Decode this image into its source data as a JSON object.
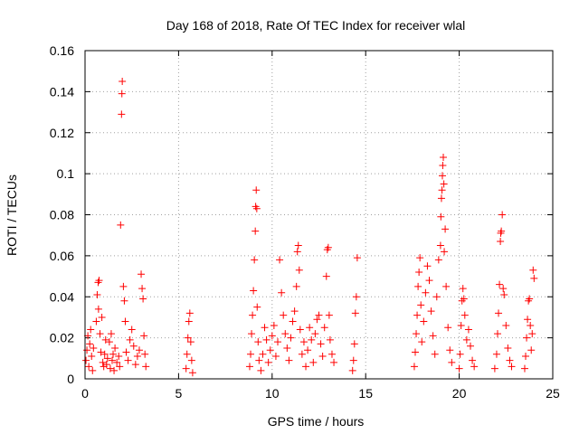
{
  "chart_data": {
    "type": "scatter",
    "title": "Day 168 of 2018, Rate Of TEC Index for receiver wlal",
    "xlabel": "GPS time / hours",
    "ylabel": "ROTI / TECUs",
    "xlim": [
      0,
      25
    ],
    "ylim": [
      0,
      0.16
    ],
    "xticks": [
      0,
      5,
      10,
      15,
      20,
      25
    ],
    "xtick_labels": [
      "0",
      "5",
      "10",
      "15",
      "20",
      "25"
    ],
    "yticks": [
      0,
      0.02,
      0.04,
      0.06,
      0.08,
      0.1,
      0.12,
      0.14,
      0.16
    ],
    "ytick_labels": [
      "0",
      "0.02",
      "0.04",
      "0.06",
      "0.08",
      "0.1",
      "0.12",
      "0.14",
      "0.16"
    ],
    "grid": true,
    "marker": "+",
    "color": "#ff0000",
    "series": [
      {
        "name": "ROTI",
        "points": [
          [
            0.05,
            0.009
          ],
          [
            0.1,
            0.014
          ],
          [
            0.15,
            0.021
          ],
          [
            0.2,
            0.006
          ],
          [
            0.25,
            0.017
          ],
          [
            0.3,
            0.024
          ],
          [
            0.35,
            0.011
          ],
          [
            0.4,
            0.004
          ],
          [
            0.45,
            0.015
          ],
          [
            0.6,
            0.028
          ],
          [
            0.65,
            0.041
          ],
          [
            0.7,
            0.047
          ],
          [
            0.72,
            0.034
          ],
          [
            0.75,
            0.048
          ],
          [
            0.8,
            0.022
          ],
          [
            0.85,
            0.013
          ],
          [
            0.9,
            0.03
          ],
          [
            0.95,
            0.008
          ],
          [
            1.0,
            0.006
          ],
          [
            1.05,
            0.012
          ],
          [
            1.1,
            0.019
          ],
          [
            1.15,
            0.007
          ],
          [
            1.2,
            0.01
          ],
          [
            1.3,
            0.018
          ],
          [
            1.35,
            0.005
          ],
          [
            1.4,
            0.022
          ],
          [
            1.45,
            0.009
          ],
          [
            1.5,
            0.012
          ],
          [
            1.55,
            0.004
          ],
          [
            1.6,
            0.015
          ],
          [
            1.7,
            0.008
          ],
          [
            1.8,
            0.011
          ],
          [
            1.85,
            0.006
          ],
          [
            1.9,
            0.075
          ],
          [
            1.95,
            0.129
          ],
          [
            1.97,
            0.139
          ],
          [
            1.99,
            0.145
          ],
          [
            2.05,
            0.045
          ],
          [
            2.1,
            0.038
          ],
          [
            2.15,
            0.028
          ],
          [
            2.2,
            0.013
          ],
          [
            2.3,
            0.009
          ],
          [
            2.4,
            0.019
          ],
          [
            2.5,
            0.024
          ],
          [
            2.6,
            0.016
          ],
          [
            2.7,
            0.007
          ],
          [
            2.8,
            0.011
          ],
          [
            2.9,
            0.014
          ],
          [
            3.0,
            0.051
          ],
          [
            3.05,
            0.044
          ],
          [
            3.1,
            0.039
          ],
          [
            3.15,
            0.021
          ],
          [
            3.2,
            0.012
          ],
          [
            3.25,
            0.006
          ],
          [
            5.4,
            0.005
          ],
          [
            5.45,
            0.012
          ],
          [
            5.5,
            0.02
          ],
          [
            5.55,
            0.028
          ],
          [
            5.6,
            0.032
          ],
          [
            5.65,
            0.018
          ],
          [
            5.7,
            0.009
          ],
          [
            5.75,
            0.003
          ],
          [
            8.8,
            0.006
          ],
          [
            8.85,
            0.012
          ],
          [
            8.9,
            0.022
          ],
          [
            8.95,
            0.031
          ],
          [
            9.0,
            0.043
          ],
          [
            9.05,
            0.058
          ],
          [
            9.1,
            0.072
          ],
          [
            9.12,
            0.084
          ],
          [
            9.15,
            0.092
          ],
          [
            9.18,
            0.083
          ],
          [
            9.2,
            0.035
          ],
          [
            9.25,
            0.018
          ],
          [
            9.3,
            0.009
          ],
          [
            9.4,
            0.004
          ],
          [
            9.5,
            0.012
          ],
          [
            9.6,
            0.025
          ],
          [
            9.7,
            0.019
          ],
          [
            9.8,
            0.008
          ],
          [
            9.9,
            0.014
          ],
          [
            10.0,
            0.021
          ],
          [
            10.1,
            0.026
          ],
          [
            10.2,
            0.011
          ],
          [
            10.3,
            0.018
          ],
          [
            10.4,
            0.058
          ],
          [
            10.5,
            0.042
          ],
          [
            10.6,
            0.031
          ],
          [
            10.7,
            0.022
          ],
          [
            10.8,
            0.015
          ],
          [
            10.9,
            0.009
          ],
          [
            11.0,
            0.02
          ],
          [
            11.1,
            0.028
          ],
          [
            11.2,
            0.033
          ],
          [
            11.3,
            0.045
          ],
          [
            11.35,
            0.062
          ],
          [
            11.4,
            0.065
          ],
          [
            11.45,
            0.053
          ],
          [
            11.5,
            0.024
          ],
          [
            11.6,
            0.012
          ],
          [
            11.7,
            0.018
          ],
          [
            11.8,
            0.006
          ],
          [
            11.9,
            0.014
          ],
          [
            12.0,
            0.025
          ],
          [
            12.1,
            0.019
          ],
          [
            12.2,
            0.008
          ],
          [
            12.3,
            0.022
          ],
          [
            12.4,
            0.029
          ],
          [
            12.5,
            0.031
          ],
          [
            12.6,
            0.017
          ],
          [
            12.7,
            0.011
          ],
          [
            12.8,
            0.025
          ],
          [
            12.9,
            0.05
          ],
          [
            12.95,
            0.063
          ],
          [
            13.0,
            0.064
          ],
          [
            13.05,
            0.031
          ],
          [
            13.1,
            0.019
          ],
          [
            13.2,
            0.012
          ],
          [
            13.3,
            0.008
          ],
          [
            14.3,
            0.004
          ],
          [
            14.35,
            0.009
          ],
          [
            14.4,
            0.017
          ],
          [
            14.45,
            0.032
          ],
          [
            14.5,
            0.04
          ],
          [
            14.55,
            0.059
          ],
          [
            17.6,
            0.006
          ],
          [
            17.65,
            0.013
          ],
          [
            17.7,
            0.022
          ],
          [
            17.75,
            0.031
          ],
          [
            17.8,
            0.045
          ],
          [
            17.85,
            0.052
          ],
          [
            17.9,
            0.059
          ],
          [
            17.95,
            0.036
          ],
          [
            18.0,
            0.018
          ],
          [
            18.1,
            0.028
          ],
          [
            18.2,
            0.042
          ],
          [
            18.3,
            0.055
          ],
          [
            18.4,
            0.048
          ],
          [
            18.5,
            0.033
          ],
          [
            18.6,
            0.021
          ],
          [
            18.7,
            0.012
          ],
          [
            18.8,
            0.04
          ],
          [
            18.9,
            0.058
          ],
          [
            19.0,
            0.065
          ],
          [
            19.02,
            0.079
          ],
          [
            19.05,
            0.088
          ],
          [
            19.08,
            0.092
          ],
          [
            19.1,
            0.099
          ],
          [
            19.12,
            0.104
          ],
          [
            19.15,
            0.108
          ],
          [
            19.18,
            0.095
          ],
          [
            19.2,
            0.062
          ],
          [
            19.25,
            0.073
          ],
          [
            19.3,
            0.045
          ],
          [
            19.4,
            0.025
          ],
          [
            19.5,
            0.014
          ],
          [
            19.6,
            0.008
          ],
          [
            20.0,
            0.005
          ],
          [
            20.05,
            0.012
          ],
          [
            20.1,
            0.026
          ],
          [
            20.15,
            0.038
          ],
          [
            20.2,
            0.044
          ],
          [
            20.25,
            0.039
          ],
          [
            20.3,
            0.031
          ],
          [
            20.4,
            0.019
          ],
          [
            20.5,
            0.024
          ],
          [
            20.6,
            0.016
          ],
          [
            20.7,
            0.009
          ],
          [
            20.8,
            0.006
          ],
          [
            21.9,
            0.005
          ],
          [
            22.0,
            0.012
          ],
          [
            22.05,
            0.022
          ],
          [
            22.1,
            0.032
          ],
          [
            22.15,
            0.046
          ],
          [
            22.2,
            0.067
          ],
          [
            22.22,
            0.071
          ],
          [
            22.25,
            0.072
          ],
          [
            22.3,
            0.08
          ],
          [
            22.35,
            0.044
          ],
          [
            22.4,
            0.041
          ],
          [
            22.5,
            0.026
          ],
          [
            22.6,
            0.015
          ],
          [
            22.7,
            0.009
          ],
          [
            22.8,
            0.006
          ],
          [
            23.5,
            0.005
          ],
          [
            23.55,
            0.011
          ],
          [
            23.6,
            0.02
          ],
          [
            23.65,
            0.029
          ],
          [
            23.7,
            0.038
          ],
          [
            23.75,
            0.039
          ],
          [
            23.8,
            0.026
          ],
          [
            23.85,
            0.014
          ],
          [
            23.9,
            0.022
          ],
          [
            23.95,
            0.053
          ],
          [
            24.0,
            0.049
          ]
        ]
      }
    ]
  }
}
